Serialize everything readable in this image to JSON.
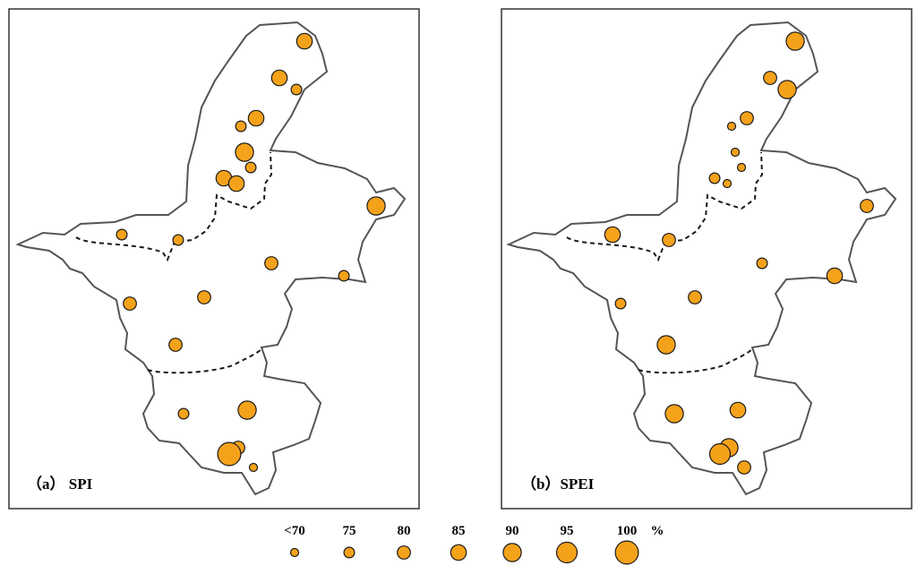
{
  "panels": [
    {
      "label": "（a） SPI",
      "stations": [
        {
          "id": "s1",
          "value": 85
        },
        {
          "id": "s2",
          "value": 85
        },
        {
          "id": "s3",
          "value": 75
        },
        {
          "id": "s4",
          "value": 75
        },
        {
          "id": "s5",
          "value": 85
        },
        {
          "id": "s6",
          "value": 90
        },
        {
          "id": "s7",
          "value": 75
        },
        {
          "id": "s8",
          "value": 85
        },
        {
          "id": "s9",
          "value": 85
        },
        {
          "id": "s10",
          "value": 90
        },
        {
          "id": "s11",
          "value": 75
        },
        {
          "id": "s12",
          "value": 75
        },
        {
          "id": "s13",
          "value": 80
        },
        {
          "id": "s14",
          "value": 80
        },
        {
          "id": "s15",
          "value": 75
        },
        {
          "id": "s16",
          "value": 80
        },
        {
          "id": "s17",
          "value": 80
        },
        {
          "id": "s18",
          "value": 75
        },
        {
          "id": "s19",
          "value": 90
        },
        {
          "id": "s20",
          "value": 80
        },
        {
          "id": "s21",
          "value": 100
        },
        {
          "id": "s22",
          "value": 70
        }
      ]
    },
    {
      "label": "（b）SPEI",
      "stations": [
        {
          "id": "s1",
          "value": 90
        },
        {
          "id": "s2",
          "value": 80
        },
        {
          "id": "s3",
          "value": 90
        },
        {
          "id": "s4",
          "value": 70
        },
        {
          "id": "s5",
          "value": 80
        },
        {
          "id": "s6",
          "value": 70
        },
        {
          "id": "s7",
          "value": 70
        },
        {
          "id": "s8",
          "value": 75
        },
        {
          "id": "s9",
          "value": 70
        },
        {
          "id": "s10",
          "value": 80
        },
        {
          "id": "s11",
          "value": 85
        },
        {
          "id": "s12",
          "value": 80
        },
        {
          "id": "s13",
          "value": 75
        },
        {
          "id": "s14",
          "value": 75
        },
        {
          "id": "s15",
          "value": 85
        },
        {
          "id": "s16",
          "value": 80
        },
        {
          "id": "s17",
          "value": 90
        },
        {
          "id": "s18",
          "value": 90
        },
        {
          "id": "s19",
          "value": 85
        },
        {
          "id": "s20",
          "value": 90
        },
        {
          "id": "s21",
          "value": 95
        },
        {
          "id": "s22",
          "value": 80
        }
      ]
    }
  ],
  "legend": {
    "items": [
      {
        "label": "<70",
        "value": 70
      },
      {
        "label": "75",
        "value": 75
      },
      {
        "label": "80",
        "value": 80
      },
      {
        "label": "85",
        "value": 85
      },
      {
        "label": "90",
        "value": 90
      },
      {
        "label": "95",
        "value": 95
      },
      {
        "label": "100",
        "value": 100
      }
    ],
    "unit": "%"
  },
  "colors": {
    "fill": "#F5A21B",
    "stroke": "#1a1a1a",
    "outline": "#555555",
    "frame": "#333333"
  }
}
